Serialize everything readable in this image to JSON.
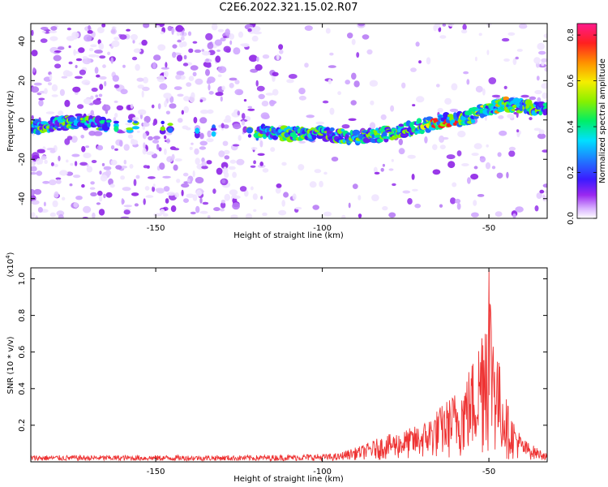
{
  "title": "C2E6.2022.321.15.02.R07",
  "chart_data": [
    {
      "type": "heatmap",
      "xlabel": "Height of straight line (km)",
      "ylabel": "Frequency (Hz)",
      "xlim": [
        -187.5,
        -32.5
      ],
      "ylim": [
        -50,
        49
      ],
      "xticks": [
        -150,
        -100,
        -50
      ],
      "yticks": [
        -40,
        -20,
        0,
        20,
        40
      ],
      "ridge": {
        "x": [
          -187,
          -180,
          -175,
          -172,
          -165,
          -120,
          -110,
          -100,
          -90,
          -85,
          -80,
          -75,
          -70,
          -65,
          -60,
          -55,
          -50,
          -45,
          -40,
          -35
        ],
        "y": [
          -4,
          -2,
          -1,
          0,
          -3,
          -6,
          -7,
          -7,
          -9,
          -8,
          -7,
          -5,
          -3,
          -1,
          0,
          2,
          6,
          8,
          7,
          6
        ]
      },
      "colorbar": {
        "label": "Normalized spectral amplitude",
        "range": [
          0.0,
          0.85
        ],
        "ticks": [
          0.0,
          0.2,
          0.4,
          0.6,
          0.8
        ]
      }
    },
    {
      "type": "line",
      "xlabel": "Height of straight line (km)",
      "ylabel": "SNR (10 * v/v)",
      "multiplier": "(x10",
      "multiplier_exp": "4",
      "xlim": [
        -187.5,
        -32.5
      ],
      "ylim": [
        0,
        1.06
      ],
      "xticks": [
        -150,
        -100,
        -50
      ],
      "yticks": [
        0.2,
        0.4,
        0.6,
        0.8,
        1.0
      ],
      "series": [
        {
          "color": "#ee3333",
          "envelope": {
            "x": [
              -187.5,
              -120,
              -95,
              -88,
              -82,
              -76,
              -70,
              -66,
              -62,
              -58,
              -55,
              -53,
              -51.5,
              -50,
              -49,
              -47,
              -44,
              -40,
              -35,
              -32.5
            ],
            "y": [
              0.03,
              0.03,
              0.04,
              0.08,
              0.13,
              0.16,
              0.2,
              0.27,
              0.34,
              0.42,
              0.55,
              0.67,
              0.9,
              1.04,
              0.9,
              0.55,
              0.28,
              0.12,
              0.06,
              0.04
            ]
          }
        }
      ]
    }
  ]
}
